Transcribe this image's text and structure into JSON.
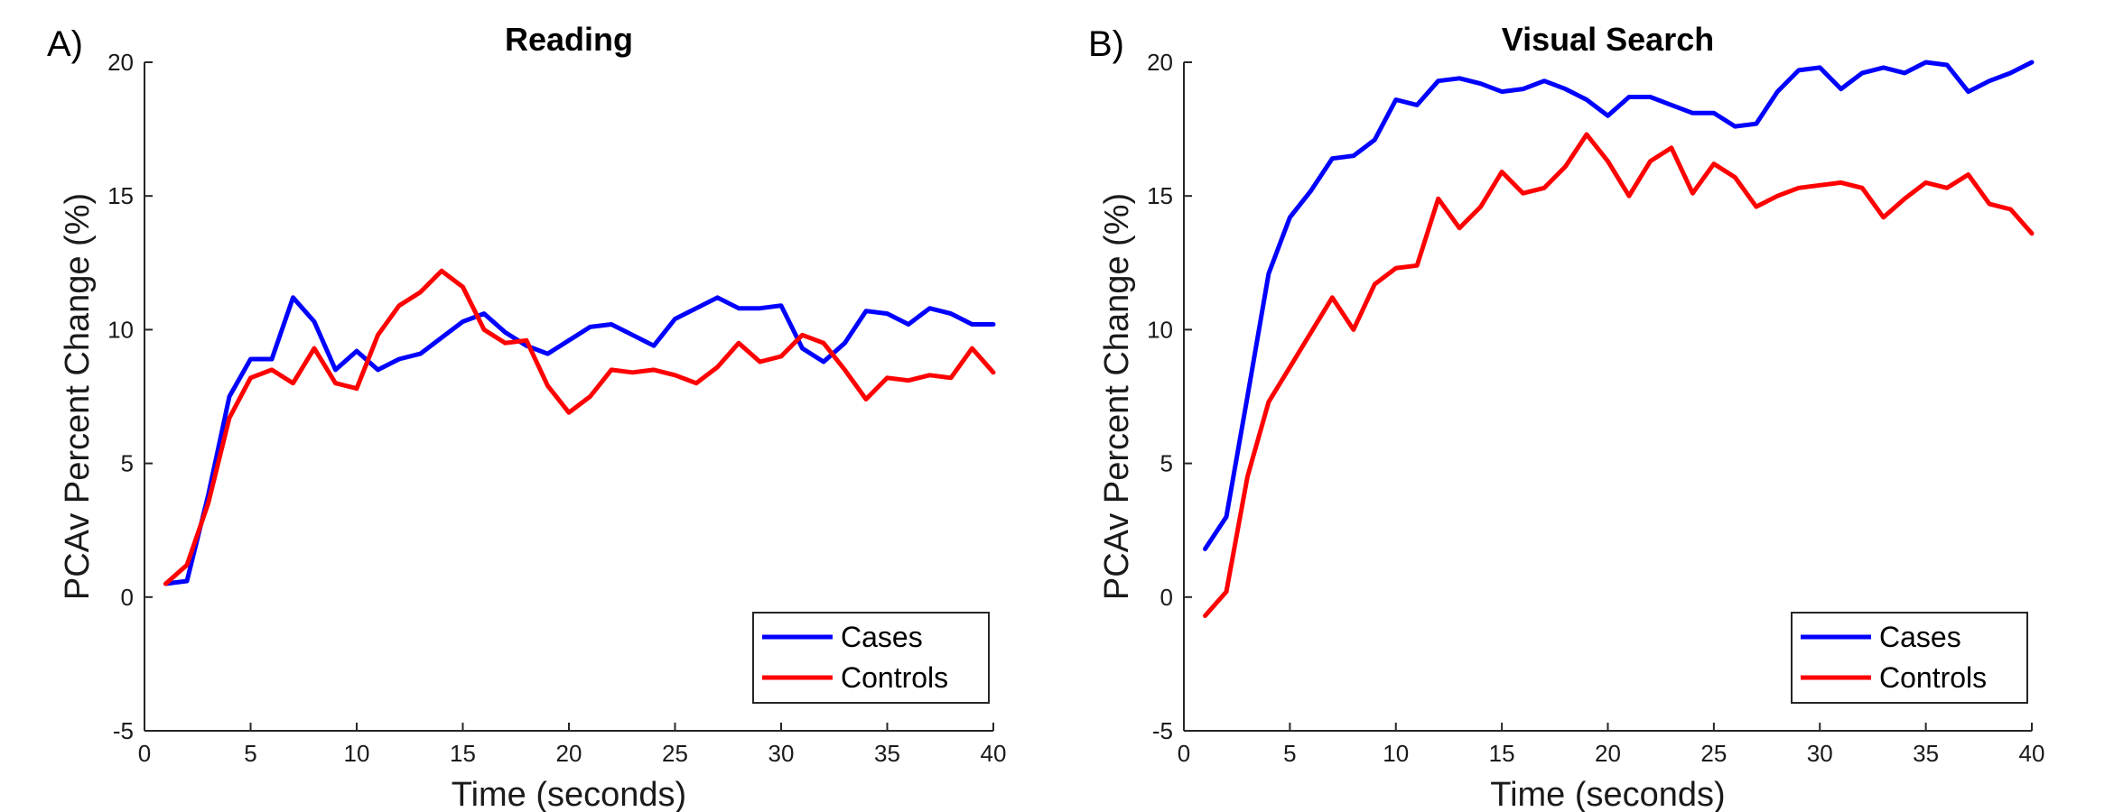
{
  "chart_data": [
    {
      "panel_label": "A)",
      "type": "line",
      "title": "Reading",
      "xlabel": "Time (seconds)",
      "ylabel": "PCAv Percent Change (%)",
      "xlim": [
        0,
        40
      ],
      "ylim": [
        -5,
        20
      ],
      "xticks": [
        0,
        5,
        10,
        15,
        20,
        25,
        30,
        35,
        40
      ],
      "yticks": [
        -5,
        0,
        5,
        10,
        15,
        20
      ],
      "grid": false,
      "legend_position": "bottom-right",
      "x": [
        1,
        2,
        3,
        4,
        5,
        6,
        7,
        8,
        9,
        10,
        11,
        12,
        13,
        14,
        15,
        16,
        17,
        18,
        19,
        20,
        21,
        22,
        23,
        24,
        25,
        26,
        27,
        28,
        29,
        30,
        31,
        32,
        33,
        34,
        35,
        36,
        37,
        38,
        39,
        40
      ],
      "series": [
        {
          "name": "Cases",
          "color": "#0000ff",
          "values": [
            0.5,
            0.6,
            3.8,
            7.5,
            8.9,
            8.9,
            11.2,
            10.3,
            8.5,
            9.2,
            8.5,
            8.9,
            9.1,
            9.7,
            10.3,
            10.6,
            9.9,
            9.4,
            9.1,
            9.6,
            10.1,
            10.2,
            9.8,
            9.4,
            10.4,
            10.8,
            11.2,
            10.8,
            10.8,
            10.9,
            9.3,
            8.8,
            9.5,
            10.7,
            10.6,
            10.2,
            10.8,
            10.6,
            10.2,
            10.2
          ]
        },
        {
          "name": "Controls",
          "color": "#ff0000",
          "values": [
            0.5,
            1.2,
            3.5,
            6.7,
            8.2,
            8.5,
            8.0,
            9.3,
            8.0,
            7.8,
            9.8,
            10.9,
            11.4,
            12.2,
            11.6,
            10.0,
            9.5,
            9.6,
            7.9,
            6.9,
            7.5,
            8.5,
            8.4,
            8.5,
            8.3,
            8.0,
            8.6,
            9.5,
            8.8,
            9.0,
            9.8,
            9.5,
            8.5,
            7.4,
            8.2,
            8.1,
            8.3,
            8.2,
            9.3,
            8.4
          ]
        }
      ]
    },
    {
      "panel_label": "B)",
      "type": "line",
      "title": "Visual Search",
      "xlabel": "Time (seconds)",
      "ylabel": "PCAv Percent Change (%)",
      "xlim": [
        0,
        40
      ],
      "ylim": [
        -5,
        20
      ],
      "xticks": [
        0,
        5,
        10,
        15,
        20,
        25,
        30,
        35,
        40
      ],
      "yticks": [
        -5,
        0,
        5,
        10,
        15,
        20
      ],
      "grid": false,
      "legend_position": "bottom-right",
      "x": [
        1,
        2,
        3,
        4,
        5,
        6,
        7,
        8,
        9,
        10,
        11,
        12,
        13,
        14,
        15,
        16,
        17,
        18,
        19,
        20,
        21,
        22,
        23,
        24,
        25,
        26,
        27,
        28,
        29,
        30,
        31,
        32,
        33,
        34,
        35,
        36,
        37,
        38,
        39,
        40
      ],
      "series": [
        {
          "name": "Cases",
          "color": "#0000ff",
          "values": [
            1.8,
            3.0,
            7.5,
            12.1,
            14.2,
            15.2,
            16.4,
            16.5,
            17.1,
            18.6,
            18.4,
            19.3,
            19.4,
            19.2,
            18.9,
            19.0,
            19.3,
            19.0,
            18.6,
            18.0,
            18.7,
            18.7,
            18.4,
            18.1,
            18.1,
            17.6,
            17.7,
            18.9,
            19.7,
            19.8,
            19.0,
            19.6,
            19.8,
            19.6,
            20.0,
            19.9,
            18.9,
            19.3,
            19.6,
            20.0
          ]
        },
        {
          "name": "Controls",
          "color": "#ff0000",
          "values": [
            -0.7,
            0.2,
            4.5,
            7.3,
            8.6,
            9.9,
            11.2,
            10.0,
            11.7,
            12.3,
            12.4,
            14.9,
            13.8,
            14.6,
            15.9,
            15.1,
            15.3,
            16.1,
            17.3,
            16.3,
            15.0,
            16.3,
            16.8,
            15.1,
            16.2,
            15.7,
            14.6,
            15.0,
            15.3,
            15.4,
            15.5,
            15.3,
            14.2,
            14.9,
            15.5,
            15.3,
            15.8,
            14.7,
            14.5,
            13.6
          ]
        }
      ]
    }
  ]
}
